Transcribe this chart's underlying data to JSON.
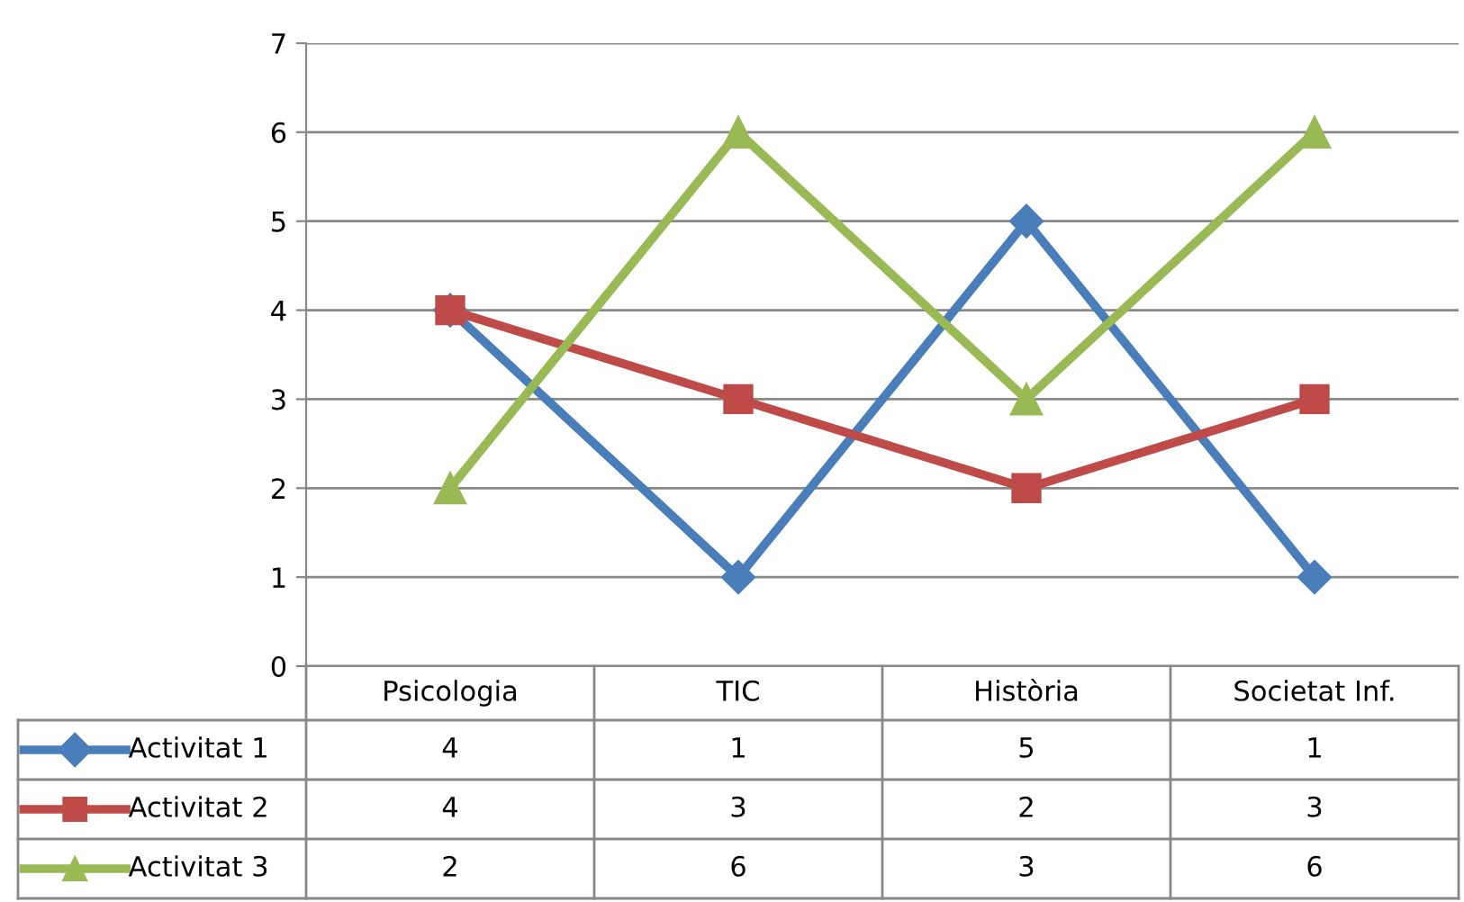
{
  "chart_data": {
    "type": "line",
    "categories": [
      "Psicologia",
      "TIC",
      "Història",
      "Societat Inf."
    ],
    "series": [
      {
        "name": "Activitat 1",
        "color": "#4a7ebb",
        "values": [
          4,
          1,
          5,
          1
        ],
        "marker": "diamond"
      },
      {
        "name": "Activitat 2",
        "color": "#be4b48",
        "values": [
          4,
          3,
          2,
          3
        ],
        "marker": "square"
      },
      {
        "name": "Activitat 3",
        "color": "#98b954",
        "values": [
          2,
          6,
          3,
          6
        ],
        "marker": "triangle"
      }
    ],
    "ylim": [
      0,
      7
    ],
    "yticks": [
      0,
      1,
      2,
      3,
      4,
      5,
      6,
      7
    ],
    "grid": "y",
    "legend": "bottom",
    "data_labels": true
  }
}
